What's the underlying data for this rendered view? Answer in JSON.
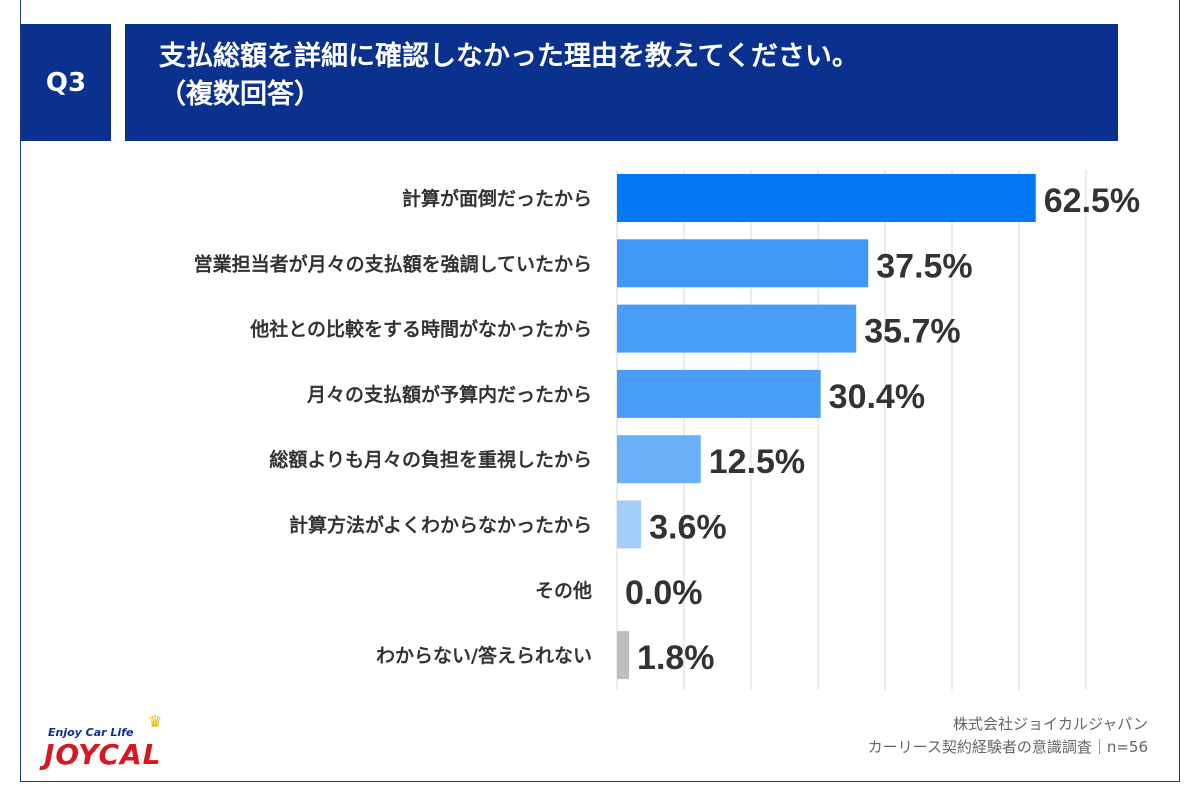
{
  "header": {
    "badge": "Q3",
    "title_line1": "支払総額を詳細に確認しなかった理由を教えてください。",
    "title_line2": "（複数回答）"
  },
  "chart_data": {
    "type": "bar",
    "orientation": "horizontal",
    "categories": [
      "計算が面倒だったから",
      "営業担当者が月々の支払額を強調していたから",
      "他社との比較をする時間がなかったから",
      "月々の支払額が予算内だったから",
      "総額よりも月々の負担を重視したから",
      "計算方法がよくわからなかったから",
      "その他",
      "わからない/答えられない"
    ],
    "values": [
      62.5,
      37.5,
      35.7,
      30.4,
      12.5,
      3.6,
      0.0,
      1.8
    ],
    "value_labels": [
      "62.5%",
      "37.5%",
      "35.7%",
      "30.4%",
      "12.5%",
      "3.6%",
      "0.0%",
      "1.8%"
    ],
    "bar_colors": [
      "#0278f5",
      "#3f98f6",
      "#4a9df6",
      "#4a9df6",
      "#6ab0f7",
      "#a3cefa",
      "#a3cefa",
      "#bdbdbd"
    ],
    "xlim": [
      0,
      70
    ],
    "grid": true,
    "xlabel": "",
    "ylabel": ""
  },
  "footer": {
    "company": "株式会社ジョイカルジャパン",
    "survey": "カーリース契約経験者の意識調査｜n=56"
  },
  "logo": {
    "tagline": "Enjoy Car Life",
    "name": "JOYCAL"
  }
}
